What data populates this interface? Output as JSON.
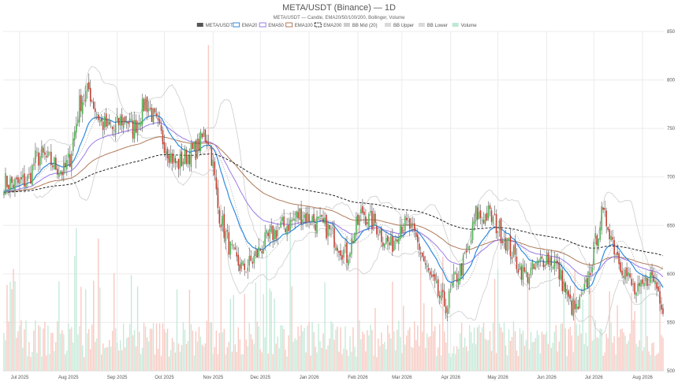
{
  "chart_data": {
    "type": "candlestick",
    "title": "META/USDT (Binance) — 1D",
    "subtitle": "META/USDT — Candle, EMA20/50/100/200, Bollinger, Volume",
    "legend": [
      {
        "label": "META/USDT",
        "color": "#555555",
        "kind": "box"
      },
      {
        "label": "EMA20",
        "color": "#2f8be0",
        "kind": "line"
      },
      {
        "label": "EMA50",
        "color": "#9a7be8",
        "kind": "line"
      },
      {
        "label": "EMA100",
        "color": "#b07a5a",
        "kind": "line"
      },
      {
        "label": "EMA200",
        "color": "#222222",
        "kind": "dash"
      },
      {
        "label": "BB Mid (20)",
        "color": "#cccccc",
        "kind": "box"
      },
      {
        "label": "BB Upper",
        "color": "#d9d9d9",
        "kind": "box"
      },
      {
        "label": "BB Lower",
        "color": "#d9d9d9",
        "kind": "box"
      },
      {
        "label": "Volume",
        "color": "#bfe8d5",
        "kind": "box"
      }
    ],
    "x_axis": {
      "labels": [
        "Jul 2025",
        "Aug 2025",
        "Sep 2025",
        "Oct 2025",
        "Nov 2025",
        "Dec 2025",
        "Jan 2026",
        "Feb 2026",
        "Mar 2026",
        "Apr 2026",
        "May 2026",
        "Jun 2026",
        "Jul 2026",
        "Aug 2026"
      ],
      "label_index": [
        10,
        41,
        72,
        102,
        133,
        163,
        194,
        225,
        253,
        284,
        314,
        345,
        375,
        406
      ],
      "count": 420
    },
    "y_axis": {
      "ylim": [
        500,
        850
      ],
      "ticks": [
        850,
        800,
        750,
        700,
        650,
        600,
        550,
        500
      ],
      "position": "right"
    },
    "price_anchors": [
      [
        0,
        695
      ],
      [
        8,
        692
      ],
      [
        16,
        698
      ],
      [
        20,
        718
      ],
      [
        24,
        722
      ],
      [
        30,
        715
      ],
      [
        38,
        705
      ],
      [
        42,
        720
      ],
      [
        48,
        775
      ],
      [
        54,
        790
      ],
      [
        58,
        770
      ],
      [
        62,
        755
      ],
      [
        66,
        752
      ],
      [
        70,
        748
      ],
      [
        74,
        758
      ],
      [
        78,
        760
      ],
      [
        82,
        748
      ],
      [
        86,
        762
      ],
      [
        90,
        778
      ],
      [
        96,
        758
      ],
      [
        100,
        742
      ],
      [
        106,
        722
      ],
      [
        110,
        712
      ],
      [
        116,
        722
      ],
      [
        122,
        728
      ],
      [
        127,
        742
      ],
      [
        130,
        740
      ],
      [
        133,
        712
      ],
      [
        136,
        668
      ],
      [
        140,
        645
      ],
      [
        144,
        625
      ],
      [
        148,
        612
      ],
      [
        152,
        605
      ],
      [
        156,
        610
      ],
      [
        160,
        618
      ],
      [
        164,
        628
      ],
      [
        170,
        640
      ],
      [
        176,
        648
      ],
      [
        182,
        652
      ],
      [
        188,
        662
      ],
      [
        194,
        658
      ],
      [
        200,
        652
      ],
      [
        206,
        646
      ],
      [
        212,
        633
      ],
      [
        218,
        618
      ],
      [
        224,
        648
      ],
      [
        228,
        665
      ],
      [
        232,
        655
      ],
      [
        236,
        652
      ],
      [
        240,
        640
      ],
      [
        246,
        628
      ],
      [
        252,
        652
      ],
      [
        258,
        648
      ],
      [
        264,
        628
      ],
      [
        268,
        608
      ],
      [
        272,
        592
      ],
      [
        278,
        572
      ],
      [
        282,
        568
      ],
      [
        286,
        592
      ],
      [
        292,
        610
      ],
      [
        296,
        628
      ],
      [
        300,
        662
      ],
      [
        304,
        658
      ],
      [
        308,
        662
      ],
      [
        314,
        648
      ],
      [
        320,
        632
      ],
      [
        326,
        612
      ],
      [
        332,
        598
      ],
      [
        338,
        605
      ],
      [
        344,
        618
      ],
      [
        350,
        612
      ],
      [
        356,
        588
      ],
      [
        360,
        568
      ],
      [
        364,
        562
      ],
      [
        368,
        575
      ],
      [
        372,
        598
      ],
      [
        376,
        632
      ],
      [
        380,
        660
      ],
      [
        384,
        652
      ],
      [
        388,
        628
      ],
      [
        392,
        612
      ],
      [
        396,
        598
      ],
      [
        402,
        578
      ],
      [
        406,
        585
      ],
      [
        410,
        598
      ],
      [
        414,
        592
      ],
      [
        419,
        568
      ]
    ],
    "volume": {
      "max": 500,
      "spikes": [
        [
          130,
          480
        ],
        [
          46,
          210
        ],
        [
          60,
          195
        ],
        [
          138,
          245
        ],
        [
          182,
          225
        ],
        [
          225,
          210
        ],
        [
          279,
          168
        ],
        [
          363,
          148
        ]
      ]
    },
    "series": [
      {
        "name": "EMA20",
        "period": 20
      },
      {
        "name": "EMA50",
        "period": 50
      },
      {
        "name": "EMA100",
        "period": 100
      },
      {
        "name": "EMA200",
        "period": 200
      },
      {
        "name": "BB Mid (20)",
        "period": 20
      },
      {
        "name": "BB Upper",
        "period": 20
      },
      {
        "name": "BB Lower",
        "period": 20
      }
    ],
    "colors": {
      "up": "#4caf50",
      "down": "#c0392b",
      "wick": "#555555",
      "vol_up": "#bfe8d5",
      "vol_down": "#f7c3bb",
      "ema20": "#2f8be0",
      "ema50": "#9a7be8",
      "ema100": "#b07a5a",
      "ema200": "#222222",
      "bb_mid": "#aaaaaa",
      "bb_band": "#cccccc"
    },
    "grid": true
  }
}
